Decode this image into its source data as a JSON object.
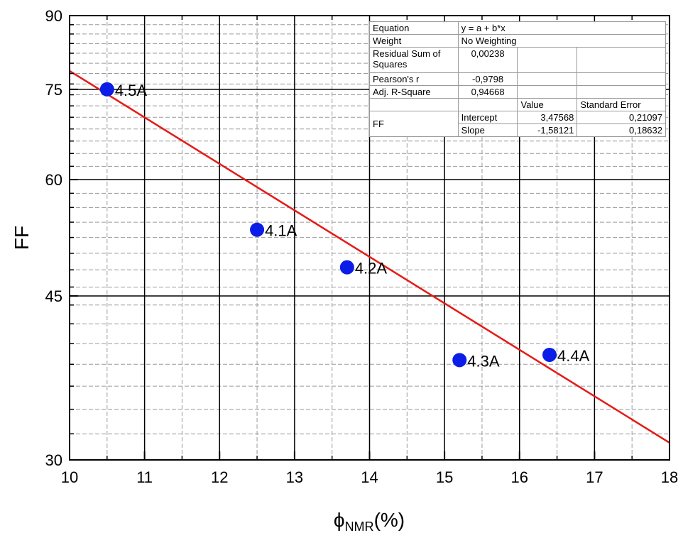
{
  "chart_data": {
    "type": "scatter",
    "xlabel_symbol": "ϕ",
    "xlabel_sub": "NMR",
    "xlabel_unit": "(%)",
    "ylabel": "FF",
    "xlim": [
      10,
      18
    ],
    "ylim": [
      30,
      90
    ],
    "y_scale": "log",
    "x_ticks": [
      10,
      11,
      12,
      13,
      14,
      15,
      16,
      17,
      18
    ],
    "y_ticks": [
      30,
      45,
      60,
      75,
      90
    ],
    "grid": true,
    "marker_color": "#0b1de6",
    "fit_color": "#e51b17",
    "series": [
      {
        "points": [
          {
            "x": 10.5,
            "y": 75.0,
            "label": "4.5A"
          },
          {
            "x": 12.5,
            "y": 53.0,
            "label": "4.1A"
          },
          {
            "x": 13.7,
            "y": 48.3,
            "label": "4.2A"
          },
          {
            "x": 15.2,
            "y": 38.4,
            "label": "4.3A"
          },
          {
            "x": 16.4,
            "y": 38.9,
            "label": "4.4A"
          }
        ]
      }
    ],
    "fit_line": {
      "x": [
        10,
        18
      ],
      "y": [
        78.5,
        31.3
      ]
    },
    "fit_table": {
      "equation_label": "Equation",
      "equation": "y = a + b*x",
      "weight_label": "Weight",
      "weight": "No Weighting",
      "rss_label": "Residual Sum of Squares",
      "rss": "0,00238",
      "pearson_label": "Pearson's r",
      "pearson": "-0,9798",
      "adjr2_label": "Adj. R-Square",
      "adjr2": "0,94668",
      "value_header": "Value",
      "stderr_header": "Standard Error",
      "row_group": "FF",
      "intercept_label": "Intercept",
      "intercept_value": "3,47568",
      "intercept_se": "0,21097",
      "slope_label": "Slope",
      "slope_value": "-1,58121",
      "slope_se": "0,18632"
    }
  }
}
